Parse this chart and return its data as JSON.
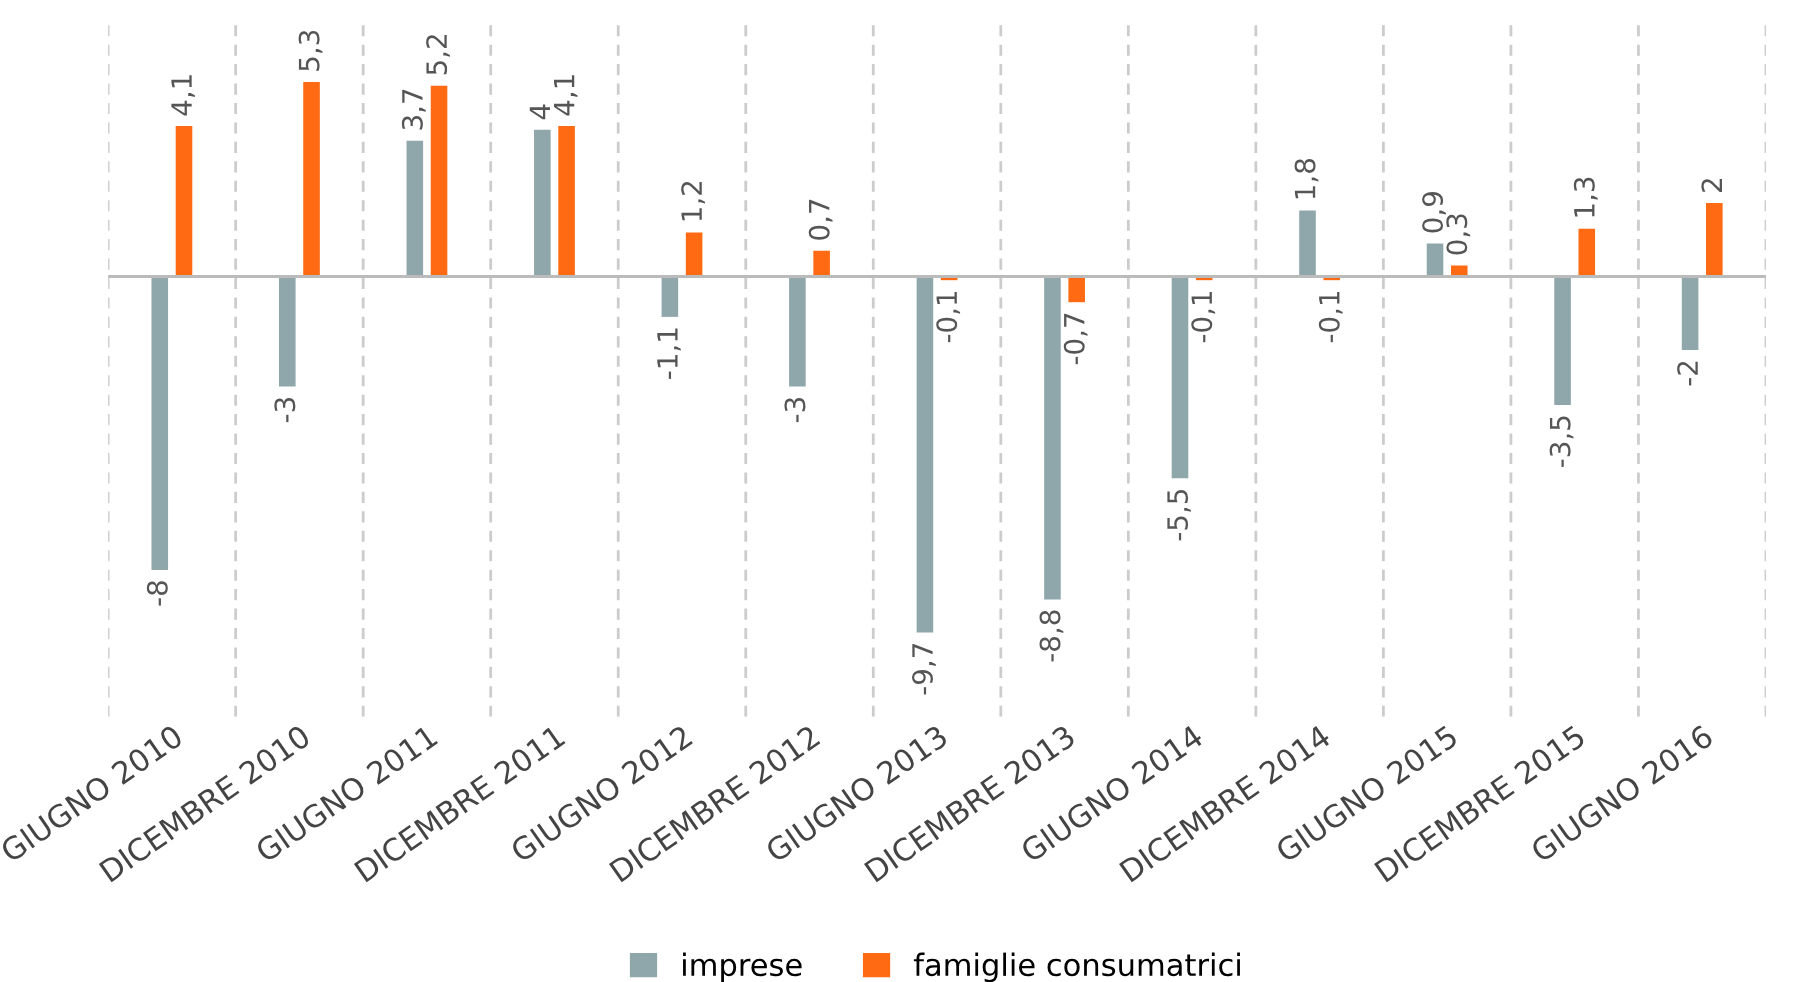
{
  "chart_data": {
    "type": "bar",
    "categories": [
      "GIUGNO 2010",
      "DICEMBRE 2010",
      "GIUGNO 2011",
      "DICEMBRE 2011",
      "GIUGNO 2012",
      "DICEMBRE 2012",
      "GIUGNO 2013",
      "DICEMBRE 2013",
      "GIUGNO 2014",
      "DICEMBRE 2014",
      "GIUGNO 2015",
      "DICEMBRE 2015",
      "GIUGNO 2016"
    ],
    "series": [
      {
        "name": "imprese",
        "color": "#8fa6aa",
        "values": [
          -8,
          -3,
          3.7,
          4,
          -1.1,
          -3,
          -9.7,
          -8.8,
          -5.5,
          1.8,
          0.9,
          -3.5,
          -2
        ],
        "value_labels": [
          "-8",
          "-3",
          "3,7",
          "4",
          "-1,1",
          "-3",
          "-9,7",
          "-8,8",
          "-5,5",
          "1,8",
          "0,9",
          "-3,5",
          "-2"
        ]
      },
      {
        "name": "famiglie consumatrici",
        "color": "#ff6a13",
        "values": [
          4.1,
          5.3,
          5.2,
          4.1,
          1.2,
          0.7,
          -0.1,
          -0.7,
          -0.1,
          -0.1,
          0.3,
          1.3,
          2
        ],
        "value_labels": [
          "4,1",
          "5,3",
          "5,2",
          "4,1",
          "1,2",
          "0,7",
          "-0,1",
          "-0,7",
          "-0,1",
          "-0,1",
          "0,3",
          "1,3",
          "2"
        ]
      }
    ],
    "grid": "x",
    "legend": "bottom"
  }
}
